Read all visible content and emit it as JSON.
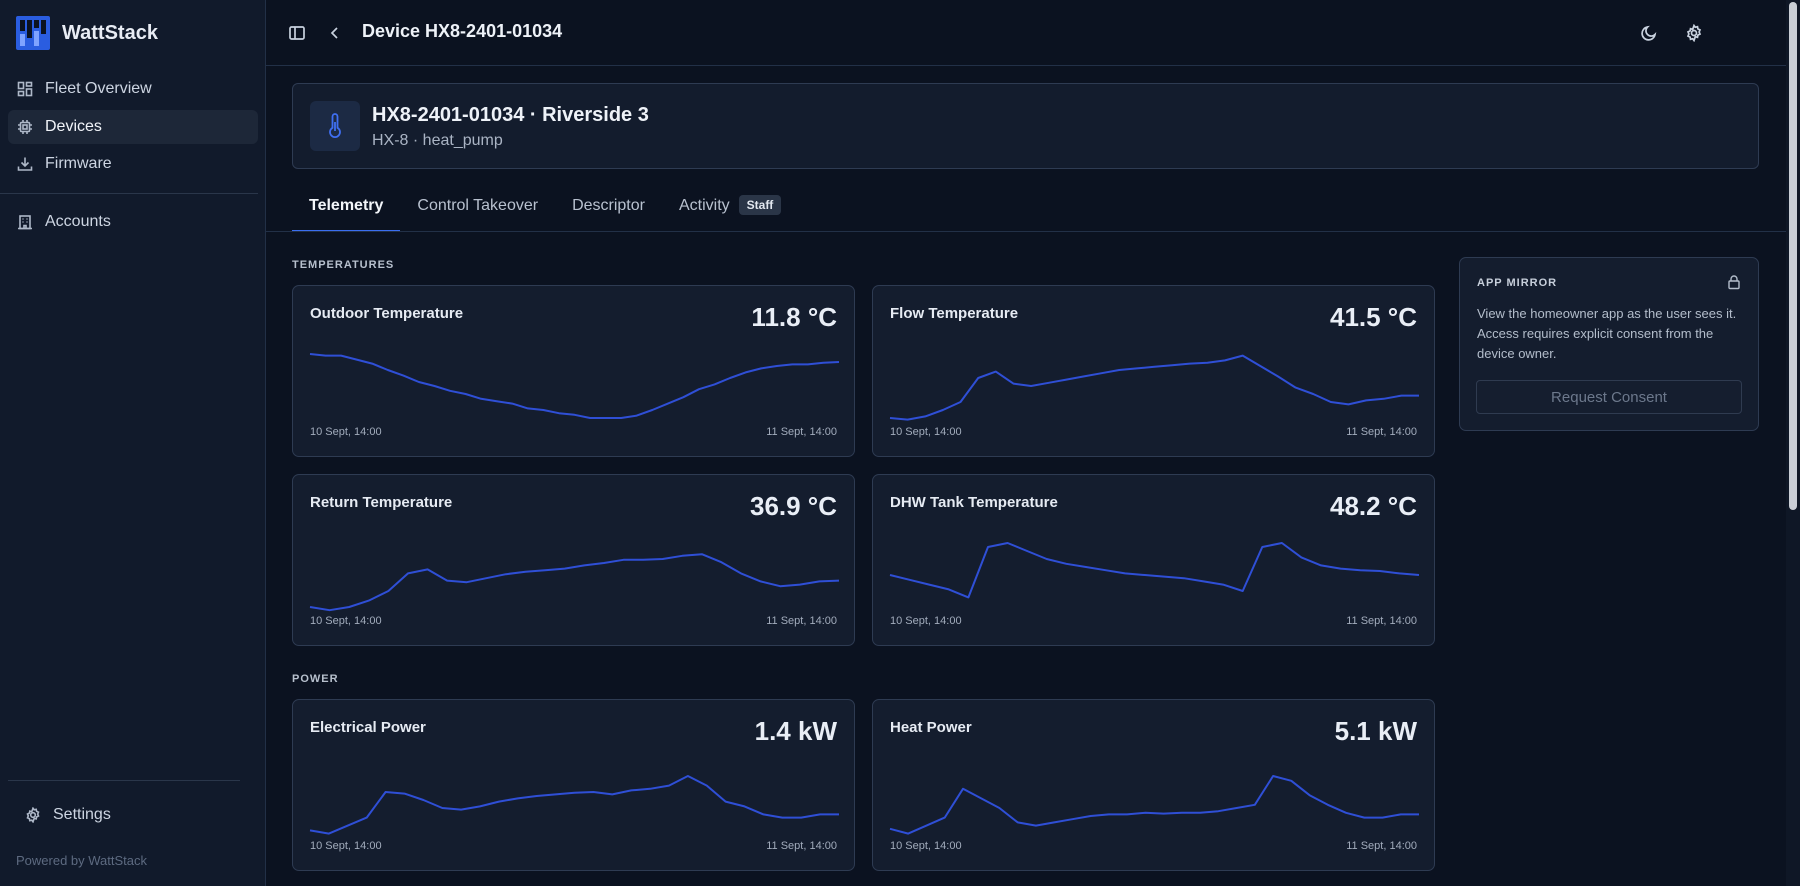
{
  "app": {
    "name": "WattStack",
    "powered_by": "Powered by WattStack"
  },
  "sidebar": {
    "items": [
      {
        "label": "Fleet Overview",
        "icon": "dashboard-icon",
        "active": false
      },
      {
        "label": "Devices",
        "icon": "chip-icon",
        "active": true
      },
      {
        "label": "Firmware",
        "icon": "download-icon",
        "active": false
      },
      {
        "label": "Accounts",
        "icon": "building-icon",
        "active": false
      }
    ],
    "settings_label": "Settings"
  },
  "topbar": {
    "title": "Device HX8-2401-01034"
  },
  "device": {
    "title": "HX8-2401-01034 · Riverside 3",
    "subtitle": "HX-8 · heat_pump"
  },
  "tabs": [
    {
      "label": "Telemetry",
      "active": true
    },
    {
      "label": "Control Takeover",
      "active": false
    },
    {
      "label": "Descriptor",
      "active": false
    },
    {
      "label": "Activity",
      "active": false,
      "badge": "Staff"
    }
  ],
  "sections": {
    "temperatures": "TEMPERATURES",
    "power": "POWER"
  },
  "metrics": {
    "outdoor": {
      "title": "Outdoor Temperature",
      "value": "11.8 °C",
      "start": "10 Sept, 14:00",
      "end": "11 Sept, 14:00"
    },
    "flow": {
      "title": "Flow Temperature",
      "value": "41.5 °C",
      "start": "10 Sept, 14:00",
      "end": "11 Sept, 14:00"
    },
    "return": {
      "title": "Return Temperature",
      "value": "36.9 °C",
      "start": "10 Sept, 14:00",
      "end": "11 Sept, 14:00"
    },
    "dhw": {
      "title": "DHW Tank Temperature",
      "value": "48.2 °C",
      "start": "10 Sept, 14:00",
      "end": "11 Sept, 14:00"
    },
    "elec": {
      "title": "Electrical Power",
      "value": "1.4 kW",
      "start": "10 Sept, 14:00",
      "end": "11 Sept, 14:00"
    },
    "heat": {
      "title": "Heat Power",
      "value": "5.1 kW",
      "start": "10 Sept, 14:00",
      "end": "11 Sept, 14:00"
    }
  },
  "chart_data": [
    {
      "type": "line",
      "series": [
        {
          "values": [
            0.9,
            0.88,
            0.88,
            0.83,
            0.78,
            0.7,
            0.63,
            0.55,
            0.5,
            0.44,
            0.4,
            0.34,
            0.31,
            0.28,
            0.22,
            0.2,
            0.16,
            0.14,
            0.1,
            0.1,
            0.1,
            0.13,
            0.2,
            0.28,
            0.36,
            0.46,
            0.52,
            0.6,
            0.67,
            0.72,
            0.75,
            0.77,
            0.77,
            0.79,
            0.8
          ]
        }
      ]
    },
    {
      "type": "line",
      "series": [
        {
          "values": [
            0.1,
            0.08,
            0.12,
            0.2,
            0.3,
            0.6,
            0.68,
            0.53,
            0.5,
            0.54,
            0.58,
            0.62,
            0.66,
            0.7,
            0.72,
            0.74,
            0.76,
            0.78,
            0.79,
            0.82,
            0.88,
            0.75,
            0.62,
            0.48,
            0.4,
            0.3,
            0.27,
            0.32,
            0.34,
            0.38,
            0.38
          ]
        }
      ]
    },
    {
      "type": "line",
      "series": [
        {
          "values": [
            0.1,
            0.06,
            0.1,
            0.18,
            0.3,
            0.52,
            0.57,
            0.43,
            0.41,
            0.46,
            0.51,
            0.54,
            0.56,
            0.58,
            0.62,
            0.65,
            0.69,
            0.69,
            0.7,
            0.74,
            0.76,
            0.66,
            0.52,
            0.42,
            0.36,
            0.38,
            0.42,
            0.43
          ]
        }
      ]
    },
    {
      "type": "line",
      "series": [
        {
          "values": [
            0.5,
            0.44,
            0.38,
            0.32,
            0.22,
            0.85,
            0.9,
            0.8,
            0.7,
            0.64,
            0.6,
            0.56,
            0.52,
            0.5,
            0.48,
            0.46,
            0.42,
            0.38,
            0.3,
            0.85,
            0.9,
            0.72,
            0.62,
            0.58,
            0.56,
            0.55,
            0.52,
            0.5
          ]
        }
      ]
    },
    {
      "type": "line",
      "series": [
        {
          "values": [
            0.12,
            0.08,
            0.18,
            0.28,
            0.6,
            0.58,
            0.5,
            0.4,
            0.38,
            0.42,
            0.48,
            0.52,
            0.55,
            0.57,
            0.59,
            0.6,
            0.57,
            0.62,
            0.64,
            0.68,
            0.8,
            0.68,
            0.48,
            0.42,
            0.32,
            0.28,
            0.28,
            0.32,
            0.32
          ]
        }
      ]
    },
    {
      "type": "line",
      "series": [
        {
          "values": [
            0.14,
            0.08,
            0.18,
            0.28,
            0.64,
            0.52,
            0.4,
            0.22,
            0.18,
            0.22,
            0.26,
            0.3,
            0.32,
            0.32,
            0.34,
            0.33,
            0.34,
            0.34,
            0.36,
            0.4,
            0.44,
            0.8,
            0.74,
            0.56,
            0.44,
            0.34,
            0.28,
            0.28,
            0.32,
            0.32
          ]
        }
      ]
    }
  ],
  "mirror": {
    "title": "APP MIRROR",
    "text": "View the homeowner app as the user sees it. Access requires explicit consent from the device owner.",
    "button": "Request Consent"
  },
  "colors": {
    "accent": "#3b6ef0",
    "line": "#2f4fd6",
    "background": "#0b1220"
  }
}
